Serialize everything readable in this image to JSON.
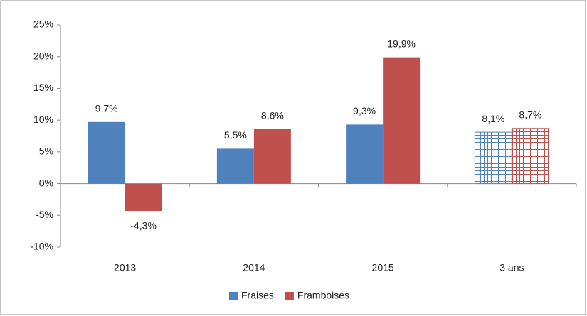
{
  "chart_data": {
    "type": "bar",
    "categories": [
      "2013",
      "2014",
      "2015",
      "3 ans"
    ],
    "series": [
      {
        "name": "Fraises",
        "color": "#4f81bd",
        "values": [
          9.7,
          5.5,
          9.3,
          8.1
        ],
        "value_labels": [
          "9,7%",
          "5,5%",
          "9,3%",
          "8,1%"
        ],
        "hatched": [
          false,
          false,
          false,
          true
        ]
      },
      {
        "name": "Framboises",
        "color": "#c0504d",
        "values": [
          -4.3,
          8.6,
          19.9,
          8.7
        ],
        "value_labels": [
          "-4,3%",
          "8,6%",
          "19,9%",
          "8,7%"
        ],
        "hatched": [
          false,
          false,
          false,
          true
        ]
      }
    ],
    "ylim": [
      -10,
      25
    ],
    "yticks": [
      {
        "value": -10,
        "label": "-10%"
      },
      {
        "value": -5,
        "label": "-5%"
      },
      {
        "value": 0,
        "label": "0%"
      },
      {
        "value": 5,
        "label": "5%"
      },
      {
        "value": 10,
        "label": "10%"
      },
      {
        "value": 15,
        "label": "15%"
      },
      {
        "value": 20,
        "label": "20%"
      },
      {
        "value": 25,
        "label": "25%"
      }
    ],
    "legend": "bottom"
  }
}
